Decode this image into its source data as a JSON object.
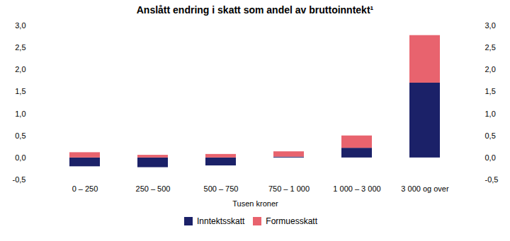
{
  "chart_data": {
    "type": "bar",
    "title": "Anslått endring i skatt som andel av bruttoinntekt¹",
    "xlabel": "Tusen kroner",
    "categories": [
      "0 – 250",
      "250 – 500",
      "500 – 750",
      "750 – 1 000",
      "1 000 – 3 000",
      "3 000 og over"
    ],
    "series": [
      {
        "name": "Inntektsskatt",
        "color": "#1b2168",
        "values": [
          -0.2,
          -0.22,
          -0.18,
          0.02,
          0.22,
          1.7
        ]
      },
      {
        "name": "Formuesskatt",
        "color": "#e8636e",
        "values": [
          0.12,
          0.06,
          0.08,
          0.12,
          0.28,
          1.08
        ]
      }
    ],
    "stacked": true,
    "ylim": [
      -0.5,
      3.0
    ],
    "yticks": [
      {
        "value": -0.5,
        "label": "-0,5"
      },
      {
        "value": 0.0,
        "label": "0,0"
      },
      {
        "value": 0.5,
        "label": "0,5"
      },
      {
        "value": 1.0,
        "label": "1,0"
      },
      {
        "value": 1.5,
        "label": "1,5"
      },
      {
        "value": 2.0,
        "label": "2,0"
      },
      {
        "value": 2.5,
        "label": "2,5"
      },
      {
        "value": 3.0,
        "label": "3,0"
      }
    ],
    "grid": false,
    "legend": "bottom"
  }
}
